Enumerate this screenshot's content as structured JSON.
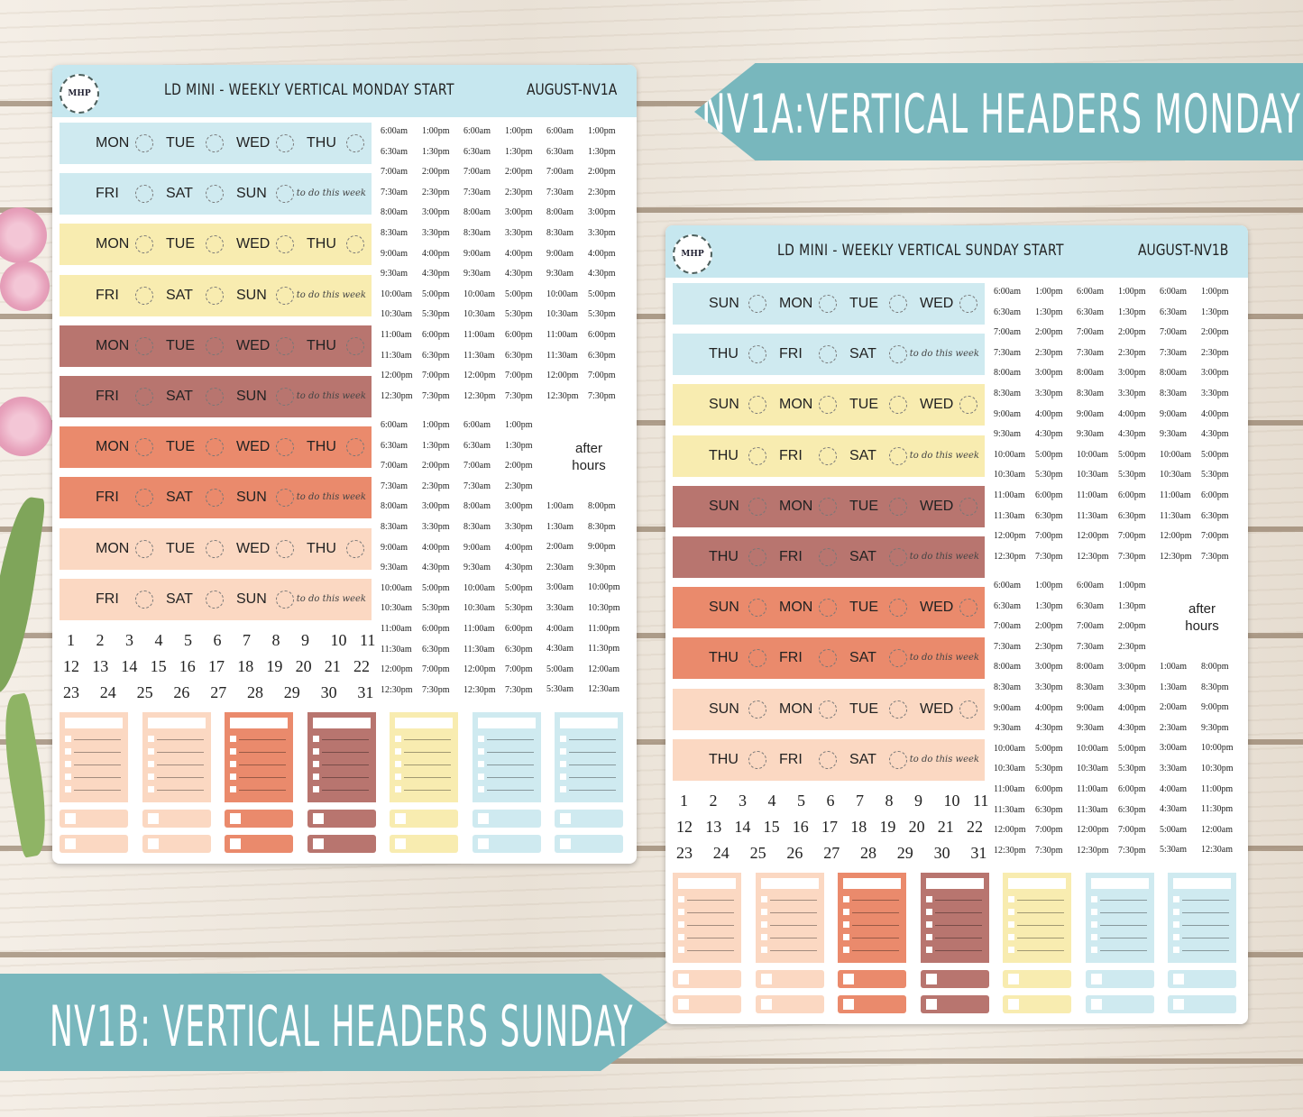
{
  "banners": {
    "top": "NV1A:VERTICAL HEADERS MONDAY",
    "bottom": "NV1B: VERTICAL HEADERS SUNDAY"
  },
  "sheet_a": {
    "logo": "MHP",
    "title": "LD MINI - WEEKLY VERTICAL MONDAY START",
    "code": "AUGUST-NV1A",
    "row1": [
      "MON",
      "TUE",
      "WED",
      "THU"
    ],
    "row2": [
      "FRI",
      "SAT",
      "SUN"
    ],
    "todo": "to do this week"
  },
  "sheet_b": {
    "logo": "MHP",
    "title": "LD MINI - WEEKLY VERTICAL SUNDAY START",
    "code": "AUGUST-NV1B",
    "row1": [
      "SUN",
      "MON",
      "TUE",
      "WED"
    ],
    "row2": [
      "THU",
      "FRI",
      "SAT"
    ],
    "todo": "to do this week"
  },
  "colors": {
    "blue": "#cfeaf0",
    "yellow": "#f8ecb0",
    "mauve": "#b8756f",
    "coral": "#ea8a6c",
    "peach": "#fbd8c2",
    "banner": "#78b7bd"
  },
  "times": {
    "am_col": [
      "6:00am",
      "6:30am",
      "7:00am",
      "7:30am",
      "8:00am",
      "8:30am",
      "9:00am",
      "9:30am",
      "10:00am",
      "10:30am",
      "11:00am",
      "11:30am",
      "12:00pm",
      "12:30pm"
    ],
    "pm_col": [
      "1:00pm",
      "1:30pm",
      "2:00pm",
      "2:30pm",
      "3:00pm",
      "3:30pm",
      "4:00pm",
      "4:30pm",
      "5:00pm",
      "5:30pm",
      "6:00pm",
      "6:30pm",
      "7:00pm",
      "7:30pm"
    ],
    "night_col": [
      "1:00am",
      "1:30am",
      "2:00am",
      "2:30am",
      "3:00am",
      "3:30am",
      "4:00am",
      "4:30am",
      "5:00am",
      "5:30am"
    ],
    "late_col": [
      "8:00pm",
      "8:30pm",
      "9:00pm",
      "9:30pm",
      "10:00pm",
      "10:30pm",
      "11:00pm",
      "11:30pm",
      "12:00am",
      "12:30am"
    ],
    "after_hours": "after hours"
  },
  "dates": [
    "1",
    "2",
    "3",
    "4",
    "5",
    "6",
    "7",
    "8",
    "9",
    "10",
    "11",
    "12",
    "13",
    "14",
    "15",
    "16",
    "17",
    "18",
    "19",
    "20",
    "21",
    "22",
    "23",
    "24",
    "25",
    "26",
    "27",
    "28",
    "29",
    "30",
    "31"
  ]
}
